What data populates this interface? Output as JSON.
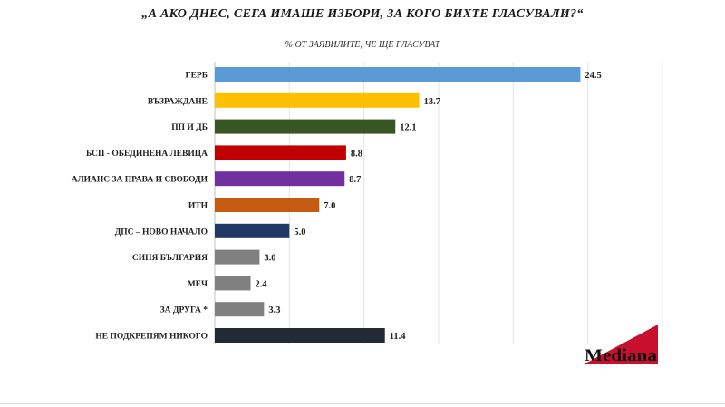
{
  "chart_data": {
    "type": "bar",
    "orientation": "horizontal",
    "title": "„А АКО ДНЕС, СЕГА ИМАШЕ ИЗБОРИ, ЗА КОГО БИХТЕ ГЛАСУВАЛИ?“",
    "subtitle": "% ОТ ЗАЯВИЛИТЕ, ЧЕ ЩЕ ГЛАСУВАТ",
    "categories": [
      "ГЕРБ",
      "ВЪЗРАЖДАНЕ",
      "ПП И ДБ",
      "БСП - ОБЕДИНЕНА ЛЕВИЦА",
      "АЛИАНС ЗА ПРАВА И СВОБОДИ",
      "ИТН",
      "ДПС – НОВО НАЧАЛО",
      "СИНЯ БЪЛГАРИЯ",
      "МЕЧ",
      "ЗА ДРУГА *",
      "НЕ ПОДКРЕПЯМ НИКОГО"
    ],
    "values": [
      24.5,
      13.7,
      12.1,
      8.8,
      8.7,
      7.0,
      5.0,
      3.0,
      2.4,
      3.3,
      11.4
    ],
    "value_labels": [
      "24.5",
      "13.7",
      "12.1",
      "8.8",
      "8.7",
      "7.0",
      "5.0",
      "3.0",
      "2.4",
      "3.3",
      "11.4"
    ],
    "colors": [
      "#5B9BD5",
      "#FFC000",
      "#375623",
      "#C00000",
      "#7030A0",
      "#C55A11",
      "#1F3864",
      "#808080",
      "#808080",
      "#808080",
      "#222A35"
    ],
    "xlim": [
      0,
      30
    ],
    "gridlines": true,
    "xlabel": "",
    "ylabel": ""
  },
  "logo": {
    "text": "Mediana"
  }
}
